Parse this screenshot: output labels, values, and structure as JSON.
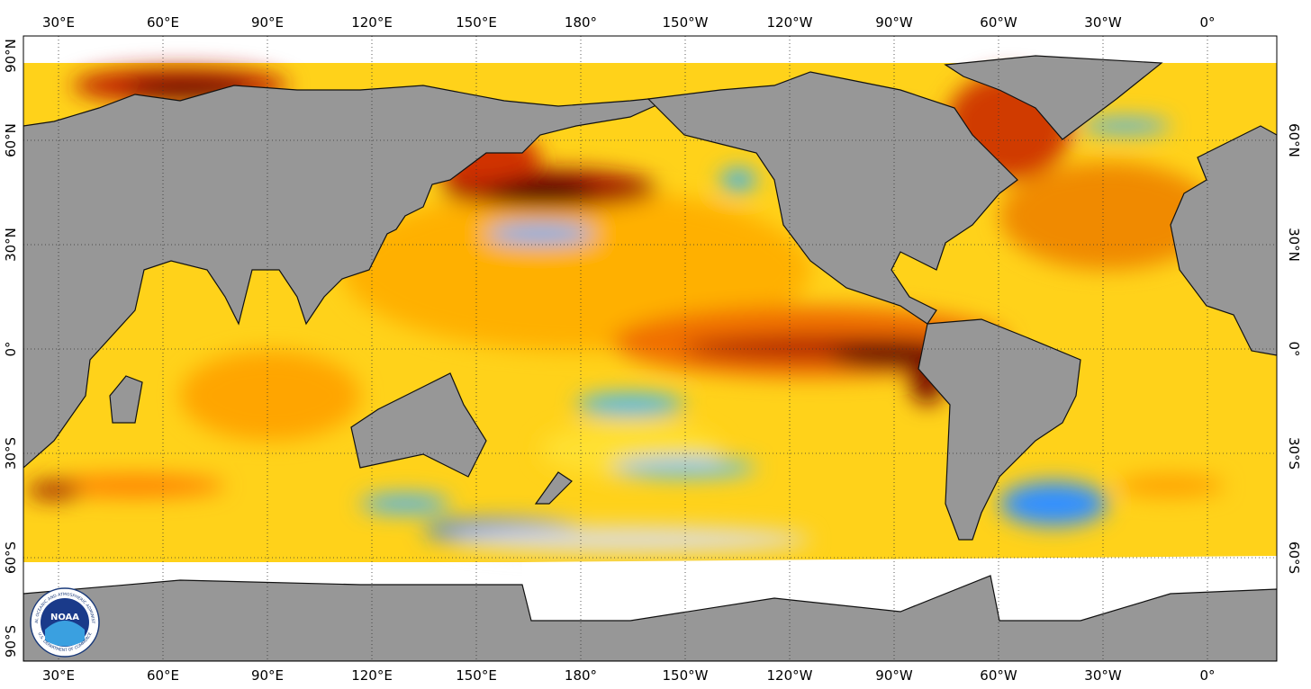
{
  "longitude_labels": [
    "30°E",
    "60°E",
    "90°E",
    "120°E",
    "150°E",
    "180°",
    "150°W",
    "120°W",
    "90°W",
    "60°W",
    "30°W",
    "0°"
  ],
  "latitude_labels": [
    "90°N",
    "60°N",
    "30°N",
    "0°",
    "30°S",
    "60°S",
    "90°S"
  ],
  "logo": {
    "text": "NOAA",
    "ring_top": "NATIONAL OCEANIC AND ATMOSPHERIC ADMINISTRATION",
    "ring_bottom": "U.S. DEPARTMENT OF COMMERCE"
  }
}
